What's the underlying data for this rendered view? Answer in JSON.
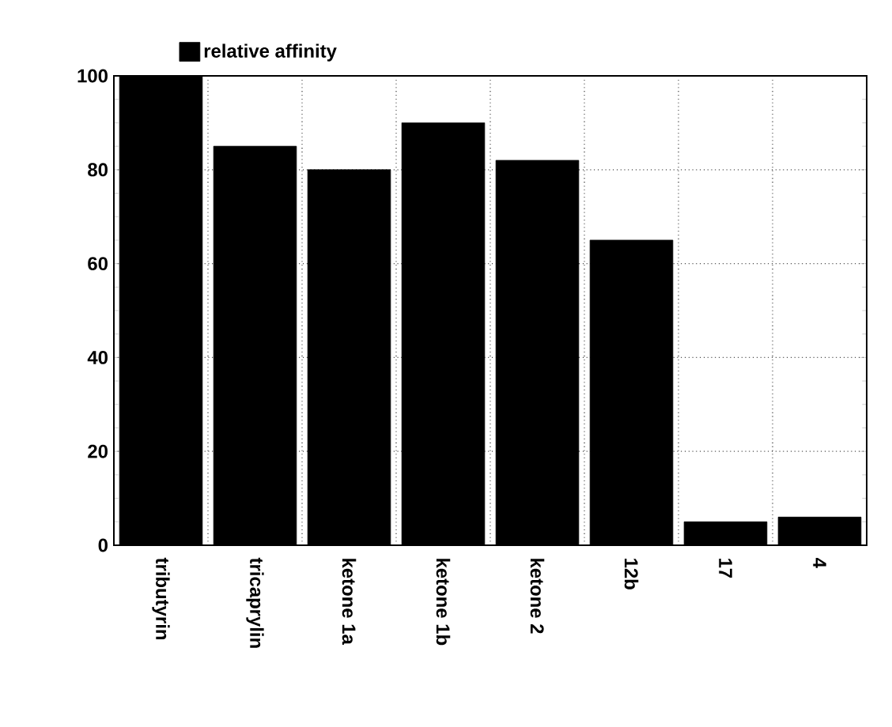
{
  "chart_data": {
    "type": "bar",
    "categories": [
      "tributyrin",
      "tricaprylin",
      "ketone 1a",
      "ketone 1b",
      "ketone 2",
      "12b",
      "17",
      "4"
    ],
    "series": [
      {
        "name": "relative affinity",
        "color": "#000000",
        "values": [
          100,
          85,
          80,
          90,
          82,
          65,
          5,
          6
        ]
      }
    ],
    "ylim": [
      0,
      100
    ],
    "yticks": [
      0,
      20,
      40,
      60,
      80,
      100
    ],
    "grid": true,
    "legend": "top"
  }
}
